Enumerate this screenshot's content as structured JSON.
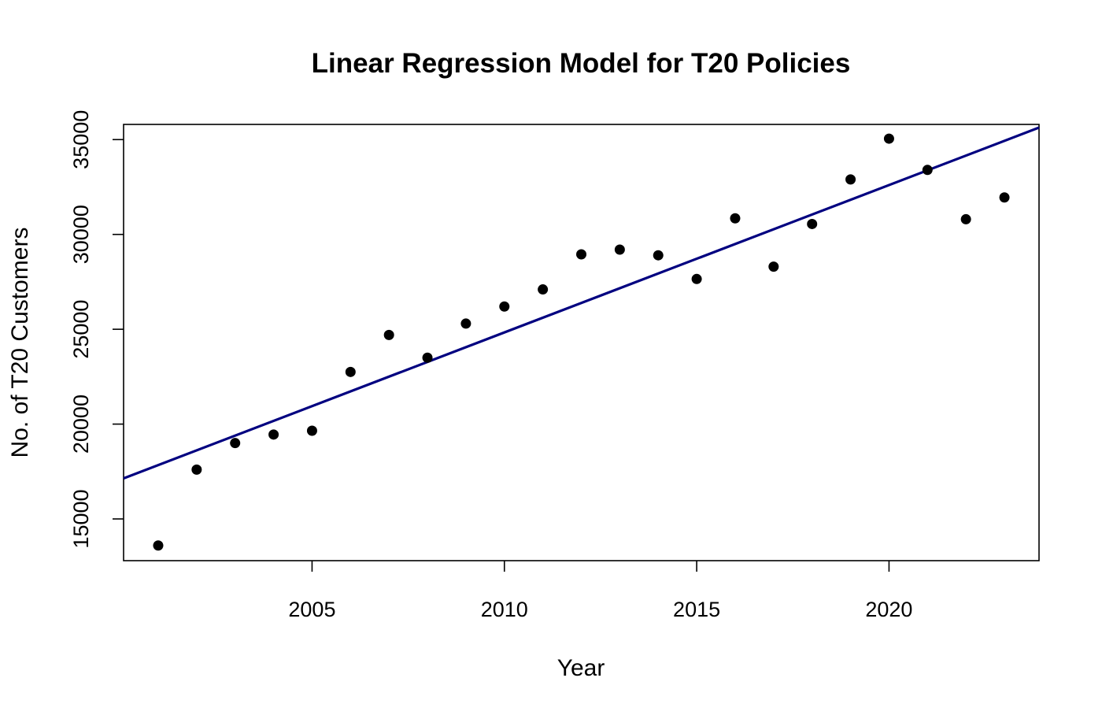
{
  "chart_data": {
    "type": "scatter",
    "title": "Linear Regression Model for T20 Policies",
    "xlabel": "Year",
    "ylabel": "No. of T20 Customers",
    "xlim": [
      2000.1,
      2023.9
    ],
    "ylim": [
      12800,
      35800
    ],
    "x_ticks": [
      2005,
      2010,
      2015,
      2020
    ],
    "y_ticks": [
      15000,
      20000,
      25000,
      30000,
      35000
    ],
    "grid": false,
    "legend": "none",
    "point_color": "#000000",
    "line_color": "#000080",
    "series": [
      {
        "x": [
          2001,
          2002,
          2003,
          2004,
          2005,
          2006,
          2007,
          2008,
          2009,
          2010,
          2011,
          2012,
          2013,
          2014,
          2015,
          2016,
          2017,
          2018,
          2019,
          2020,
          2021,
          2022,
          2023
        ],
        "y": [
          13600,
          17600,
          19000,
          19450,
          19650,
          22750,
          24700,
          23500,
          25300,
          26200,
          27100,
          28950,
          29200,
          28900,
          27650,
          30850,
          28300,
          30550,
          32900,
          35050,
          33400,
          30800,
          31950
        ]
      }
    ],
    "regression_line": {
      "slope": 777,
      "intercept_at_x_start": 17140
    }
  }
}
